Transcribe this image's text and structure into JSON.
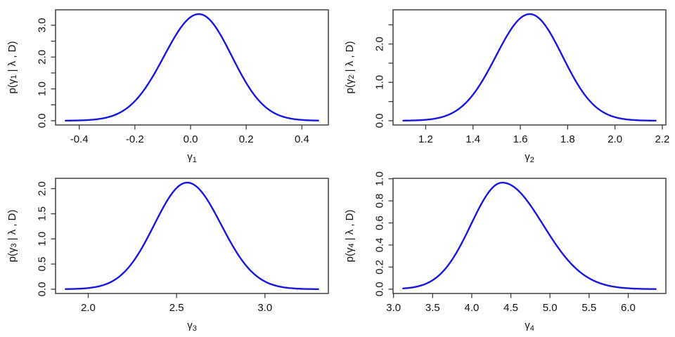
{
  "figure": {
    "title": "",
    "background_color": "#ffffff",
    "curve_color": "#1616df",
    "axis_color": "#3d3d3d",
    "text_color": "#111111",
    "panel_count": 4,
    "layout": "2x2 grid of posterior density plots"
  },
  "chart_data": [
    {
      "id": "gamma-1",
      "type": "line",
      "position": "top-left",
      "xlabel_base": "γ",
      "xlabel_sub": "1",
      "ylabel_pre": "p(γ",
      "ylabel_sub": "1",
      "ylabel_post": " | λ , D)",
      "xlim": [
        -0.485,
        0.495
      ],
      "ylim": [
        -0.134,
        3.484
      ],
      "x_ticks": [
        -0.4,
        -0.2,
        0.0,
        0.2,
        0.4
      ],
      "x_tick_labels": [
        "-0.4",
        "-0.2",
        "0.0",
        "0.2",
        "0.4"
      ],
      "y_ticks": [
        0,
        0.5,
        1,
        1.5,
        2,
        2.5,
        3
      ],
      "y_tick_labels": [
        "0.0",
        "",
        "1.0",
        "",
        "2.0",
        "",
        "3.0"
      ],
      "curve": {
        "shape": "asymmetric_gaussian",
        "mean": 0.03,
        "sd_left": 0.125,
        "sd_right": 0.118,
        "peak_density": 3.35,
        "x_domain": [
          -0.449,
          0.459
        ]
      },
      "peak": {
        "x": 0.03,
        "density": 3.35
      },
      "sample_points": [
        [
          -0.45,
          0.002
        ],
        [
          -0.4,
          0.009
        ],
        [
          -0.3,
          0.103
        ],
        [
          -0.2,
          0.616
        ],
        [
          -0.1,
          1.95
        ],
        [
          0.0,
          3.26
        ],
        [
          0.03,
          3.35
        ],
        [
          0.1,
          2.81
        ],
        [
          0.2,
          1.19
        ],
        [
          0.3,
          0.245
        ],
        [
          0.4,
          0.025
        ],
        [
          0.46,
          0.004
        ]
      ]
    },
    {
      "id": "gamma-2",
      "type": "line",
      "position": "top-right",
      "xlabel_base": "γ",
      "xlabel_sub": "2",
      "ylabel_pre": "p(γ",
      "ylabel_sub": "2",
      "ylabel_post": " | λ , D)",
      "xlim": [
        1.062,
        2.215
      ],
      "ylim": [
        -0.111,
        2.891
      ],
      "x_ticks": [
        1.2,
        1.4,
        1.6,
        1.8,
        2.0,
        2.2
      ],
      "x_tick_labels": [
        "1.2",
        "1.4",
        "1.6",
        "1.8",
        "2.0",
        "2.2"
      ],
      "y_ticks": [
        0,
        0.5,
        1,
        1.5,
        2,
        2.5
      ],
      "y_tick_labels": [
        "0.0",
        "",
        "1.0",
        "",
        "2.0",
        ""
      ],
      "curve": {
        "shape": "asymmetric_gaussian",
        "mean": 1.64,
        "sd_left": 0.143,
        "sd_right": 0.138,
        "peak_density": 2.78,
        "x_domain": [
          1.105,
          2.172
        ]
      },
      "peak": {
        "x": 1.64,
        "density": 2.78
      },
      "sample_points": [
        [
          1.1,
          0.002
        ],
        [
          1.2,
          0.024
        ],
        [
          1.3,
          0.165
        ],
        [
          1.4,
          0.68
        ],
        [
          1.5,
          1.72
        ],
        [
          1.6,
          2.67
        ],
        [
          1.64,
          2.78
        ],
        [
          1.7,
          2.53
        ],
        [
          1.8,
          1.42
        ],
        [
          1.9,
          0.47
        ],
        [
          2.0,
          0.093
        ],
        [
          2.1,
          0.011
        ],
        [
          2.17,
          0.002
        ]
      ]
    },
    {
      "id": "gamma-3",
      "type": "line",
      "position": "bottom-left",
      "xlabel_base": "γ",
      "xlabel_sub": "3",
      "ylabel_pre": "p(γ",
      "ylabel_sub": "3",
      "ylabel_post": " | λ , D)",
      "xlim": [
        1.815,
        3.359
      ],
      "ylim": [
        -0.085,
        2.205
      ],
      "x_ticks": [
        2.0,
        2.5,
        3.0
      ],
      "x_tick_labels": [
        "2.0",
        "2.5",
        "3.0"
      ],
      "y_ticks": [
        0,
        0.5,
        1,
        1.5,
        2
      ],
      "y_tick_labels": [
        "0.0",
        "0.5",
        "1.0",
        "1.5",
        "2.0"
      ],
      "curve": {
        "shape": "asymmetric_gaussian",
        "mean": 2.56,
        "sd_left": 0.186,
        "sd_right": 0.192,
        "peak_density": 2.12,
        "x_domain": [
          1.872,
          3.302
        ]
      },
      "peak": {
        "x": 2.56,
        "density": 2.12
      },
      "sample_points": [
        [
          1.87,
          0.002
        ],
        [
          2.0,
          0.023
        ],
        [
          2.2,
          0.326
        ],
        [
          2.4,
          1.464
        ],
        [
          2.56,
          2.12
        ],
        [
          2.7,
          1.625
        ],
        [
          2.9,
          0.442
        ],
        [
          3.1,
          0.041
        ],
        [
          3.3,
          0.001
        ]
      ]
    },
    {
      "id": "gamma-4",
      "type": "line",
      "position": "bottom-right",
      "xlabel_base": "γ",
      "xlabel_sub": "4",
      "ylabel_pre": "p(γ",
      "ylabel_sub": "4",
      "ylabel_post": " | λ , D)",
      "xlim": [
        2.994,
        6.481
      ],
      "ylim": [
        -0.039,
        1.004
      ],
      "x_ticks": [
        3.0,
        3.5,
        4.0,
        4.5,
        5.0,
        5.5,
        6.0
      ],
      "x_tick_labels": [
        "3.0",
        "3.5",
        "4.0",
        "4.5",
        "5.0",
        "5.5",
        "6.0"
      ],
      "y_ticks": [
        0,
        0.2,
        0.4,
        0.6,
        0.8,
        1.0
      ],
      "y_tick_labels": [
        "0.0",
        "0.2",
        "0.4",
        "0.6",
        "0.8",
        "1.0"
      ],
      "curve": {
        "shape": "asymmetric_gaussian",
        "mean": 4.39,
        "sd_left": 0.4,
        "sd_right": 0.52,
        "peak_density": 0.965,
        "x_domain": [
          3.123,
          6.352
        ]
      },
      "peak": {
        "x": 4.39,
        "density": 0.965
      },
      "sample_points": [
        [
          3.12,
          0.006
        ],
        [
          3.5,
          0.081
        ],
        [
          4.0,
          0.6
        ],
        [
          4.39,
          0.965
        ],
        [
          4.5,
          0.944
        ],
        [
          5.0,
          0.485
        ],
        [
          5.5,
          0.099
        ],
        [
          6.0,
          0.008
        ],
        [
          6.35,
          0.001
        ]
      ]
    }
  ]
}
